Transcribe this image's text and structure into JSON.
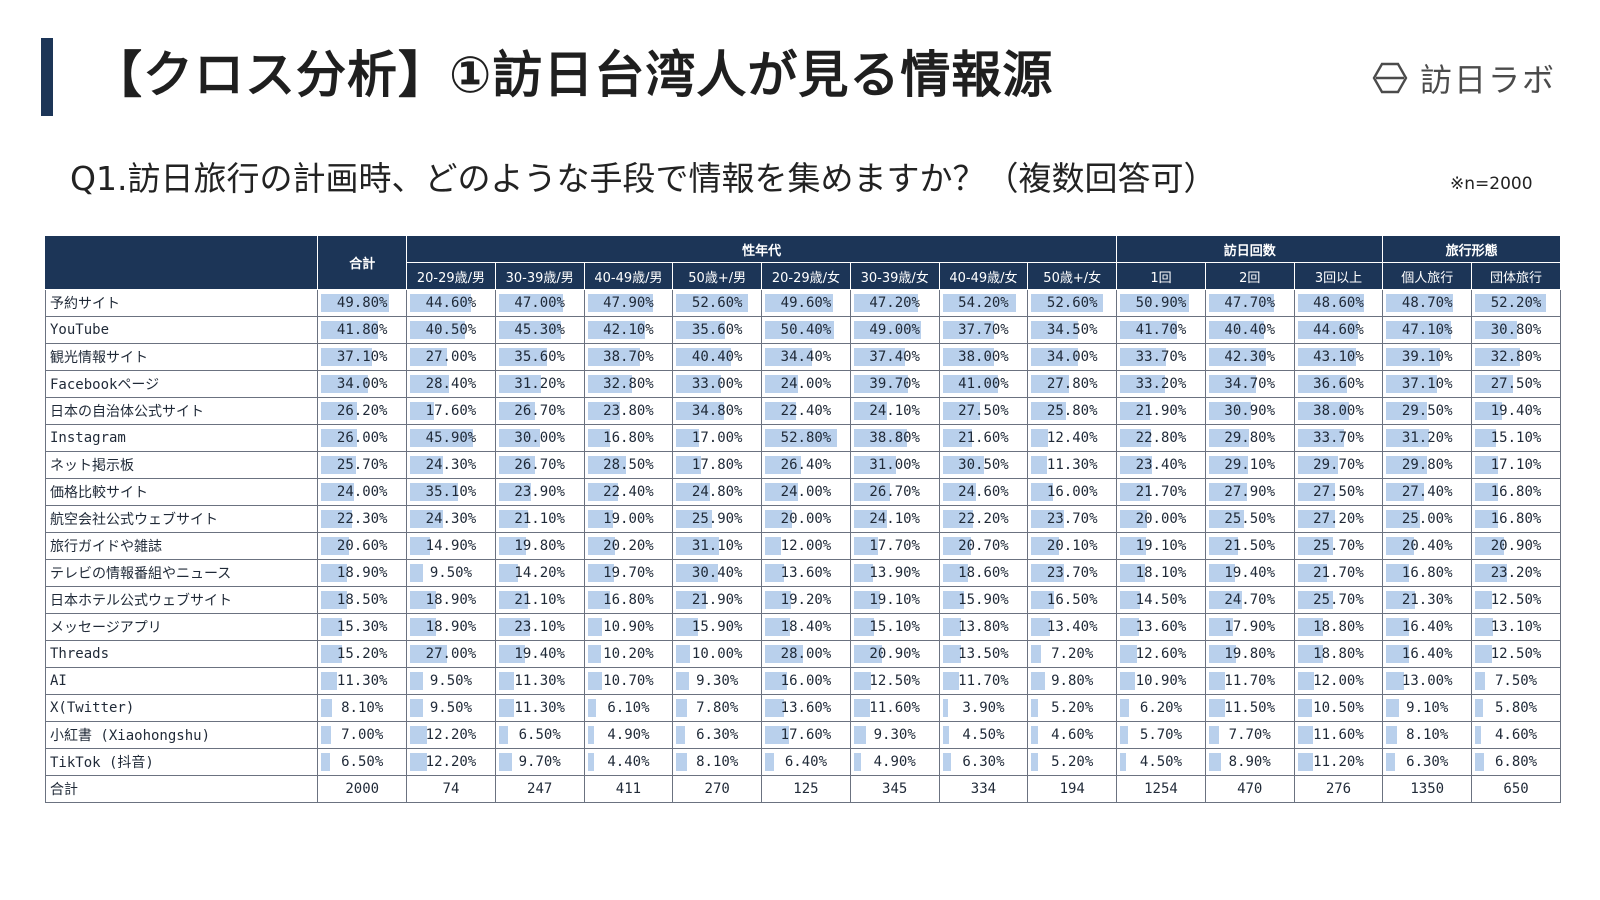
{
  "header": {
    "title": "【クロス分析】①訪日台湾人が見る情報源",
    "logo_text": "訪日ラボ"
  },
  "question": "Q1.訪日旅行の計画時、どのような手段で情報を集めますか？（複数回答可）",
  "sample_note": "※n=2000",
  "colors": {
    "header_bg": "#1c3557",
    "bar": "#b9d0ec"
  },
  "chart_data": {
    "type": "table",
    "groups": [
      {
        "label": "合計",
        "span": 1
      },
      {
        "label": "性年代",
        "span": 8
      },
      {
        "label": "訪日回数",
        "span": 3
      },
      {
        "label": "旅行形態",
        "span": 2
      }
    ],
    "columns": [
      "合計",
      "20-29歳/男",
      "30-39歳/男",
      "40-49歳/男",
      "50歳+/男",
      "20-29歳/女",
      "30-39歳/女",
      "40-49歳/女",
      "50歳+/女",
      "1回",
      "2回",
      "3回以上",
      "個人旅行",
      "団体旅行"
    ],
    "rows": [
      {
        "label": "予約サイト",
        "values": [
          49.8,
          44.6,
          47.0,
          47.9,
          52.6,
          49.6,
          47.2,
          54.2,
          52.6,
          50.9,
          47.7,
          48.6,
          48.7,
          52.2
        ]
      },
      {
        "label": "YouTube",
        "values": [
          41.8,
          40.5,
          45.3,
          42.1,
          35.6,
          50.4,
          49.0,
          37.7,
          34.5,
          41.7,
          40.4,
          44.6,
          47.1,
          30.8
        ]
      },
      {
        "label": "観光情報サイト",
        "values": [
          37.1,
          27.0,
          35.6,
          38.7,
          40.4,
          34.4,
          37.4,
          38.0,
          34.0,
          33.7,
          42.3,
          43.1,
          39.1,
          32.8
        ]
      },
      {
        "label": "Facebookページ",
        "values": [
          34.0,
          28.4,
          31.2,
          32.8,
          33.0,
          24.0,
          39.7,
          41.0,
          27.8,
          33.2,
          34.7,
          36.6,
          37.1,
          27.5
        ]
      },
      {
        "label": "日本の自治体公式サイト",
        "values": [
          26.2,
          17.6,
          26.7,
          23.8,
          34.8,
          22.4,
          24.1,
          27.5,
          25.8,
          21.9,
          30.9,
          38.0,
          29.5,
          19.4
        ]
      },
      {
        "label": "Instagram",
        "values": [
          26.0,
          45.9,
          30.0,
          16.8,
          17.0,
          52.8,
          38.8,
          21.6,
          12.4,
          22.8,
          29.8,
          33.7,
          31.2,
          15.1
        ]
      },
      {
        "label": "ネット掲示板",
        "values": [
          25.7,
          24.3,
          26.7,
          28.5,
          17.8,
          26.4,
          31.0,
          30.5,
          11.3,
          23.4,
          29.1,
          29.7,
          29.8,
          17.1
        ]
      },
      {
        "label": "価格比較サイト",
        "values": [
          24.0,
          35.1,
          23.9,
          22.4,
          24.8,
          24.0,
          26.7,
          24.6,
          16.0,
          21.7,
          27.9,
          27.5,
          27.4,
          16.8
        ]
      },
      {
        "label": "航空会社公式ウェブサイト",
        "values": [
          22.3,
          24.3,
          21.1,
          19.0,
          25.9,
          20.0,
          24.1,
          22.2,
          23.7,
          20.0,
          25.5,
          27.2,
          25.0,
          16.8
        ]
      },
      {
        "label": "旅行ガイドや雑誌",
        "values": [
          20.6,
          14.9,
          19.8,
          20.2,
          31.1,
          12.0,
          17.7,
          20.7,
          20.1,
          19.1,
          21.5,
          25.7,
          20.4,
          20.9
        ]
      },
      {
        "label": "テレビの情報番組やニュース",
        "values": [
          18.9,
          9.5,
          14.2,
          19.7,
          30.4,
          13.6,
          13.9,
          18.6,
          23.7,
          18.1,
          19.4,
          21.7,
          16.8,
          23.2
        ]
      },
      {
        "label": "日本ホテル公式ウェブサイト",
        "values": [
          18.5,
          18.9,
          21.1,
          16.8,
          21.9,
          19.2,
          19.1,
          15.9,
          16.5,
          14.5,
          24.7,
          25.7,
          21.3,
          12.5
        ]
      },
      {
        "label": "メッセージアプリ",
        "values": [
          15.3,
          18.9,
          23.1,
          10.9,
          15.9,
          18.4,
          15.1,
          13.8,
          13.4,
          13.6,
          17.9,
          18.8,
          16.4,
          13.1
        ]
      },
      {
        "label": "Threads",
        "values": [
          15.2,
          27.0,
          19.4,
          10.2,
          10.0,
          28.0,
          20.9,
          13.5,
          7.2,
          12.6,
          19.8,
          18.8,
          16.4,
          12.5
        ]
      },
      {
        "label": "AI",
        "values": [
          11.3,
          9.5,
          11.3,
          10.7,
          9.3,
          16.0,
          12.5,
          11.7,
          9.8,
          10.9,
          11.7,
          12.0,
          13.0,
          7.5
        ]
      },
      {
        "label": "X(Twitter)",
        "values": [
          8.1,
          9.5,
          11.3,
          6.1,
          7.8,
          13.6,
          11.6,
          3.9,
          5.2,
          6.2,
          11.5,
          10.5,
          9.1,
          5.8
        ]
      },
      {
        "label": "小紅書 (Xiaohongshu)",
        "values": [
          7.0,
          12.2,
          6.5,
          4.9,
          6.3,
          17.6,
          9.3,
          4.5,
          4.6,
          5.7,
          7.7,
          11.6,
          8.1,
          4.6
        ]
      },
      {
        "label": "TikTok (抖音)",
        "values": [
          6.5,
          12.2,
          9.7,
          4.4,
          8.1,
          6.4,
          4.9,
          6.3,
          5.2,
          4.5,
          8.9,
          11.2,
          6.3,
          6.8
        ]
      }
    ],
    "total": {
      "label": "合計",
      "values": [
        2000,
        74,
        247,
        411,
        270,
        125,
        345,
        334,
        194,
        1254,
        470,
        276,
        1350,
        650
      ]
    },
    "value_format": "percent_2dp",
    "bar_scale_max": 60
  }
}
